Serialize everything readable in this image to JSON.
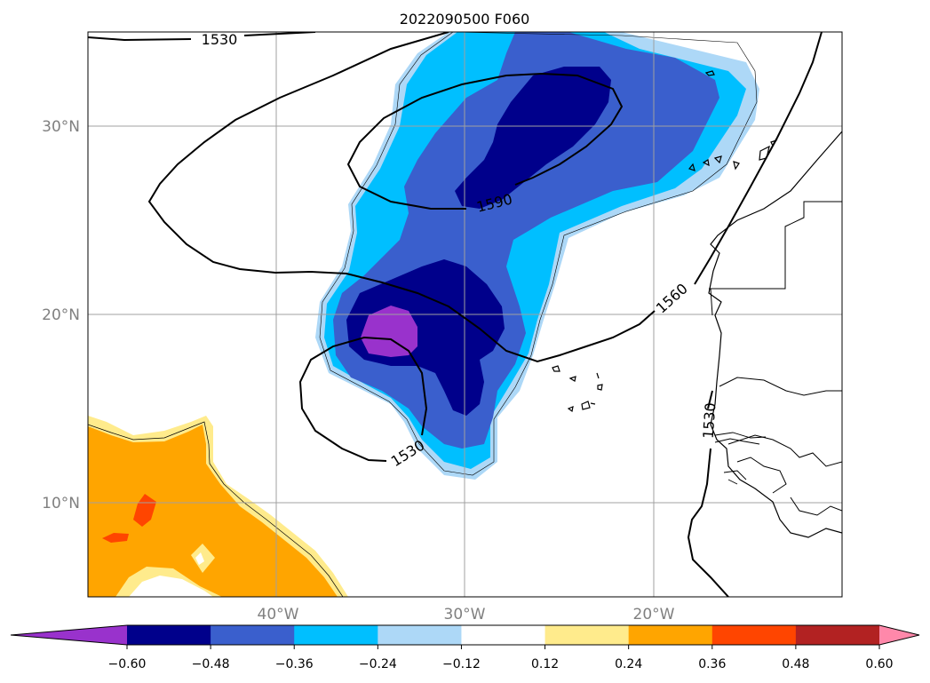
{
  "title": "2022090500 F060",
  "map": {
    "lon_range": [
      -50,
      -10
    ],
    "lat_range": [
      5,
      35
    ],
    "lat_ticks": [
      {
        "value": 30,
        "label": "30°N"
      },
      {
        "value": 20,
        "label": "20°N"
      },
      {
        "value": 10,
        "label": "10°N"
      }
    ],
    "lon_ticks": [
      {
        "value": -40,
        "label": "40°W"
      },
      {
        "value": -30,
        "label": "30°W"
      },
      {
        "value": -20,
        "label": "20°W"
      }
    ],
    "grid": true,
    "tick_label_color": "#808080"
  },
  "contour_lines": {
    "color": "#000000",
    "labels": [
      "1530",
      "1590",
      "1560",
      "1530",
      "1530"
    ]
  },
  "colorbar": {
    "orientation": "horizontal",
    "extend": "both",
    "ticks": [
      "−0.60",
      "−0.48",
      "−0.36",
      "−0.24",
      "−0.12",
      "0.12",
      "0.24",
      "0.36",
      "0.48",
      "0.60"
    ],
    "colors": [
      "#9932cc",
      "#00008b",
      "#3a5fcd",
      "#00bfff",
      "#add8f7",
      "#ffffff",
      "#ffeb8c",
      "#ffa500",
      "#ff4500",
      "#b22222",
      "#ff88aa"
    ]
  }
}
